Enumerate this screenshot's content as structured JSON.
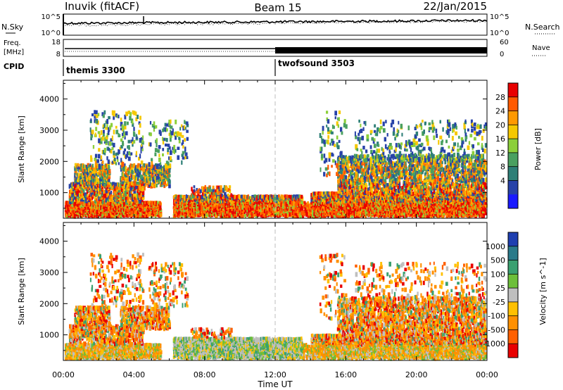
{
  "header": {
    "station": "Inuvik (fitACF)",
    "beam": "Beam 15",
    "date": "22/Jan/2015"
  },
  "summary": {
    "nsky_label": "N.Sky",
    "nsky_ticks": [
      "10^5",
      "10^0"
    ],
    "nsearch_label": "N.Search",
    "nsearch_ticks": [
      "10^5",
      "10^0"
    ],
    "freq_label_1": "Freq.",
    "freq_label_2": "[MHz]",
    "freq_ticks": [
      "18",
      "8"
    ],
    "nave_label": "Nave",
    "nave_ticks": [
      "60",
      "0"
    ],
    "cpid_label": "CPID",
    "cpid_segments": [
      {
        "name": "themis 3300",
        "start_hour": 0
      },
      {
        "name": "twofsound 3503",
        "start_hour": 12
      }
    ]
  },
  "chart_data": [
    {
      "type": "heatmap",
      "name": "power-panel",
      "ylabel": "Slant Range [km]",
      "x_ticks": [
        "00:00",
        "04:00",
        "08:00",
        "12:00",
        "16:00",
        "20:00",
        "00:00"
      ],
      "y_ticks": [
        "4000",
        "3000",
        "2000",
        "1000"
      ],
      "x_range_hours": [
        0,
        24
      ],
      "y_range_km": [
        180,
        4600
      ],
      "colorbar": {
        "label": "Power [dB]",
        "ticks": [
          "28",
          "24",
          "20",
          "16",
          "12",
          "8",
          "4"
        ],
        "colors": [
          "#e80000",
          "#ff5a00",
          "#ff9900",
          "#f5c800",
          "#8ccf3a",
          "#4aa060",
          "#2e7f77",
          "#2742a8",
          "#1a1aff"
        ]
      },
      "marker_line_hour": 12
    },
    {
      "type": "heatmap",
      "name": "velocity-panel",
      "ylabel": "Slant Range [km]",
      "xlabel": "Time UT",
      "x_ticks": [
        "00:00",
        "04:00",
        "08:00",
        "12:00",
        "16:00",
        "20:00",
        "00:00"
      ],
      "y_ticks": [
        "4000",
        "3000",
        "2000",
        "1000"
      ],
      "x_range_hours": [
        0,
        24
      ],
      "y_range_km": [
        180,
        4600
      ],
      "colorbar": {
        "label": "Velocity [m s^-1]",
        "ticks": [
          "1000",
          "500",
          "100",
          "25",
          "-25",
          "-100",
          "-500",
          "-1000"
        ],
        "colors": [
          "#1e3fb0",
          "#2a7a8a",
          "#3aa070",
          "#6dbf3a",
          "#bfbfbf",
          "#ffc000",
          "#ff9000",
          "#ff6000",
          "#e80000"
        ]
      },
      "marker_line_hour": 12
    }
  ]
}
